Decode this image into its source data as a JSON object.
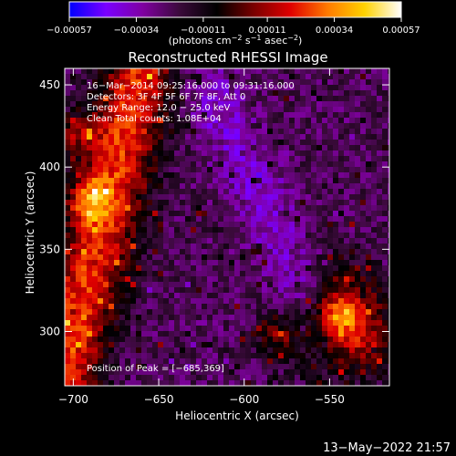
{
  "chart_data": {
    "type": "heatmap",
    "title": "Reconstructed RHESSI Image",
    "xlabel": "Heliocentric X (arcsec)",
    "ylabel": "Heliocentric Y (arcsec)",
    "xlim": [
      -705,
      -515
    ],
    "ylim": [
      267,
      460
    ],
    "x_ticks": [
      {
        "value": -700,
        "label": "−700"
      },
      {
        "value": -650,
        "label": "−650"
      },
      {
        "value": -600,
        "label": "−600"
      },
      {
        "value": -550,
        "label": "−550"
      }
    ],
    "y_ticks": [
      {
        "value": 300,
        "label": "300"
      },
      {
        "value": 350,
        "label": "350"
      },
      {
        "value": 400,
        "label": "400"
      },
      {
        "value": 450,
        "label": "450"
      }
    ],
    "colorbar": {
      "range": [
        -0.00057,
        0.00057
      ],
      "ticks": [
        {
          "value": -0.00057,
          "label": "−0.00057"
        },
        {
          "value": -0.00034,
          "label": "−0.00034"
        },
        {
          "value": -0.00011,
          "label": "−0.00011"
        },
        {
          "value": 0.00011,
          "label": "0.00011"
        },
        {
          "value": 0.00034,
          "label": "0.00034"
        },
        {
          "value": 0.00057,
          "label": "0.00057"
        }
      ],
      "unit_parts": [
        "(photons cm",
        "−2",
        " s",
        "−1",
        " asec",
        "−2",
        ")"
      ],
      "colors": [
        "#0000ff",
        "#7a00ff",
        "#7f00a0",
        "#3a0a3a",
        "#000000",
        "#7a0000",
        "#e00000",
        "#ff7a00",
        "#ffd200",
        "#ffffff"
      ]
    },
    "annotations": [
      "16−Mar−2014 09:25:16.000 to 09:31:16.000",
      "Detectors: 3F 4F 5F 6F 7F 8F, Att 0",
      "Energy Range: 12.0 − 25.0 keV",
      "Clean    Total counts: 1.08E+04"
    ],
    "peak_label": "Position of Peak = [−685,369]",
    "peak": {
      "x": -685,
      "y": 369
    },
    "bright_regions": [
      {
        "x": -690,
        "y": 380,
        "level": 0.0005
      },
      {
        "x": -698,
        "y": 420,
        "level": 0.00045
      },
      {
        "x": -545,
        "y": 310,
        "level": 0.00045
      },
      {
        "x": -580,
        "y": 298,
        "level": 0.00042
      }
    ],
    "footer_timestamp": "13−May−2022 21:57"
  }
}
